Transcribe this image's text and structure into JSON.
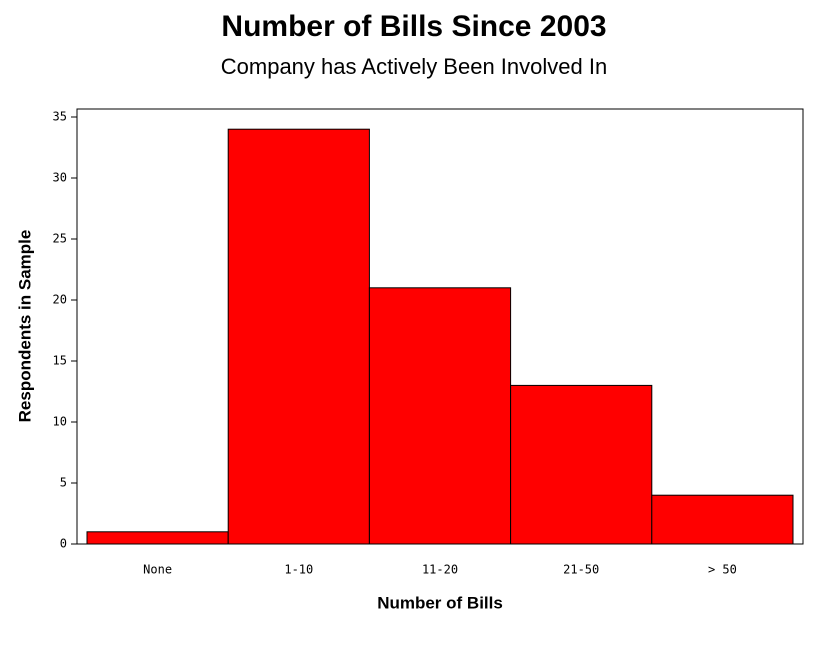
{
  "chart_data": {
    "type": "bar",
    "title": "Number of Bills Since 2003",
    "subtitle": "Company has Actively Been Involved In",
    "x_label": "Number of Bills",
    "y_label": "Respondents in Sample",
    "categories": [
      "None",
      "1-10",
      "11-20",
      "21-50",
      "> 50"
    ],
    "values": [
      1,
      34,
      21,
      13,
      4
    ],
    "color": "#ff0000",
    "ylim": [
      0,
      35
    ],
    "yticks": [
      0,
      5,
      10,
      15,
      20,
      25,
      30,
      35
    ]
  }
}
